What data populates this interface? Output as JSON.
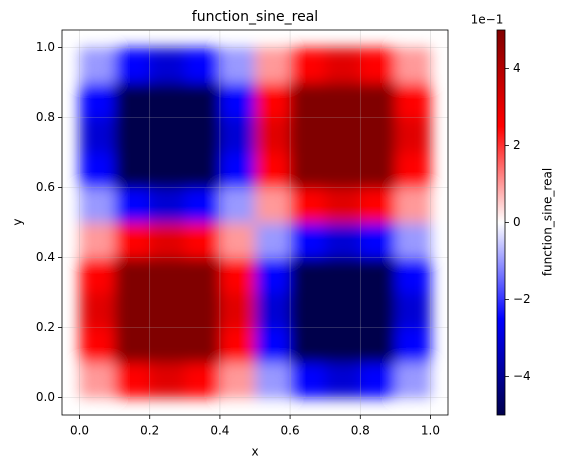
{
  "chart_data": {
    "type": "heatmap",
    "title": "function_sine_real",
    "xlabel": "x",
    "ylabel": "y",
    "colorbar_label": "function_sine_real",
    "colorbar_offset": "1e−1",
    "x": [
      0.05,
      0.15,
      0.25,
      0.35,
      0.45,
      0.55,
      0.65,
      0.75,
      0.85,
      0.95
    ],
    "y": [
      0.05,
      0.15,
      0.25,
      0.35,
      0.45,
      0.55,
      0.65,
      0.75,
      0.85,
      0.95
    ],
    "z": [
      [
        0.1,
        0.25,
        0.31,
        0.25,
        0.1,
        -0.1,
        -0.25,
        -0.31,
        -0.25,
        -0.1
      ],
      [
        0.25,
        0.66,
        0.81,
        0.66,
        0.25,
        -0.25,
        -0.66,
        -0.81,
        -0.66,
        -0.25
      ],
      [
        0.31,
        0.81,
        1,
        0.81,
        0.31,
        -0.31,
        -0.81,
        -1,
        -0.81,
        -0.31
      ],
      [
        0.25,
        0.66,
        0.81,
        0.66,
        0.25,
        -0.25,
        -0.66,
        -0.81,
        -0.66,
        -0.25
      ],
      [
        0.1,
        0.25,
        0.31,
        0.25,
        0.1,
        -0.1,
        -0.25,
        -0.31,
        -0.25,
        -0.1
      ],
      [
        -0.1,
        -0.25,
        -0.31,
        -0.25,
        -0.1,
        0.1,
        0.25,
        0.31,
        0.25,
        0.1
      ],
      [
        -0.25,
        -0.66,
        -0.81,
        -0.66,
        -0.25,
        0.25,
        0.66,
        0.81,
        0.66,
        0.25
      ],
      [
        -0.31,
        -0.81,
        -1,
        -0.81,
        -0.31,
        0.31,
        0.81,
        1,
        0.81,
        0.31
      ],
      [
        -0.25,
        -0.66,
        -0.81,
        -0.66,
        -0.25,
        0.25,
        0.66,
        0.81,
        0.66,
        0.25
      ],
      [
        -0.1,
        -0.25,
        -0.31,
        -0.25,
        -0.1,
        0.1,
        0.25,
        0.31,
        0.25,
        0.1
      ]
    ],
    "cell_size": 0.1,
    "xlim": [
      -0.05,
      1.05
    ],
    "ylim": [
      -0.05,
      1.05
    ],
    "xticks": [
      {
        "value": 0,
        "label": "0.0"
      },
      0.2,
      0.4,
      0.6,
      0.8,
      {
        "value": 1,
        "label": "1.0"
      }
    ],
    "yticks": [
      {
        "value": 0,
        "label": "0.0"
      },
      0.2,
      0.4,
      0.6,
      0.8,
      {
        "value": 1,
        "label": "1.0"
      }
    ],
    "clim": [
      -0.5,
      0.5
    ],
    "cticks": [
      {
        "value": -0.4,
        "label": "−4"
      },
      {
        "value": -0.2,
        "label": "−2"
      },
      0,
      {
        "value": 0.2,
        "label": "2"
      },
      {
        "value": 0.4,
        "label": "4"
      }
    ],
    "colormap": "seismic",
    "grid": true
  }
}
